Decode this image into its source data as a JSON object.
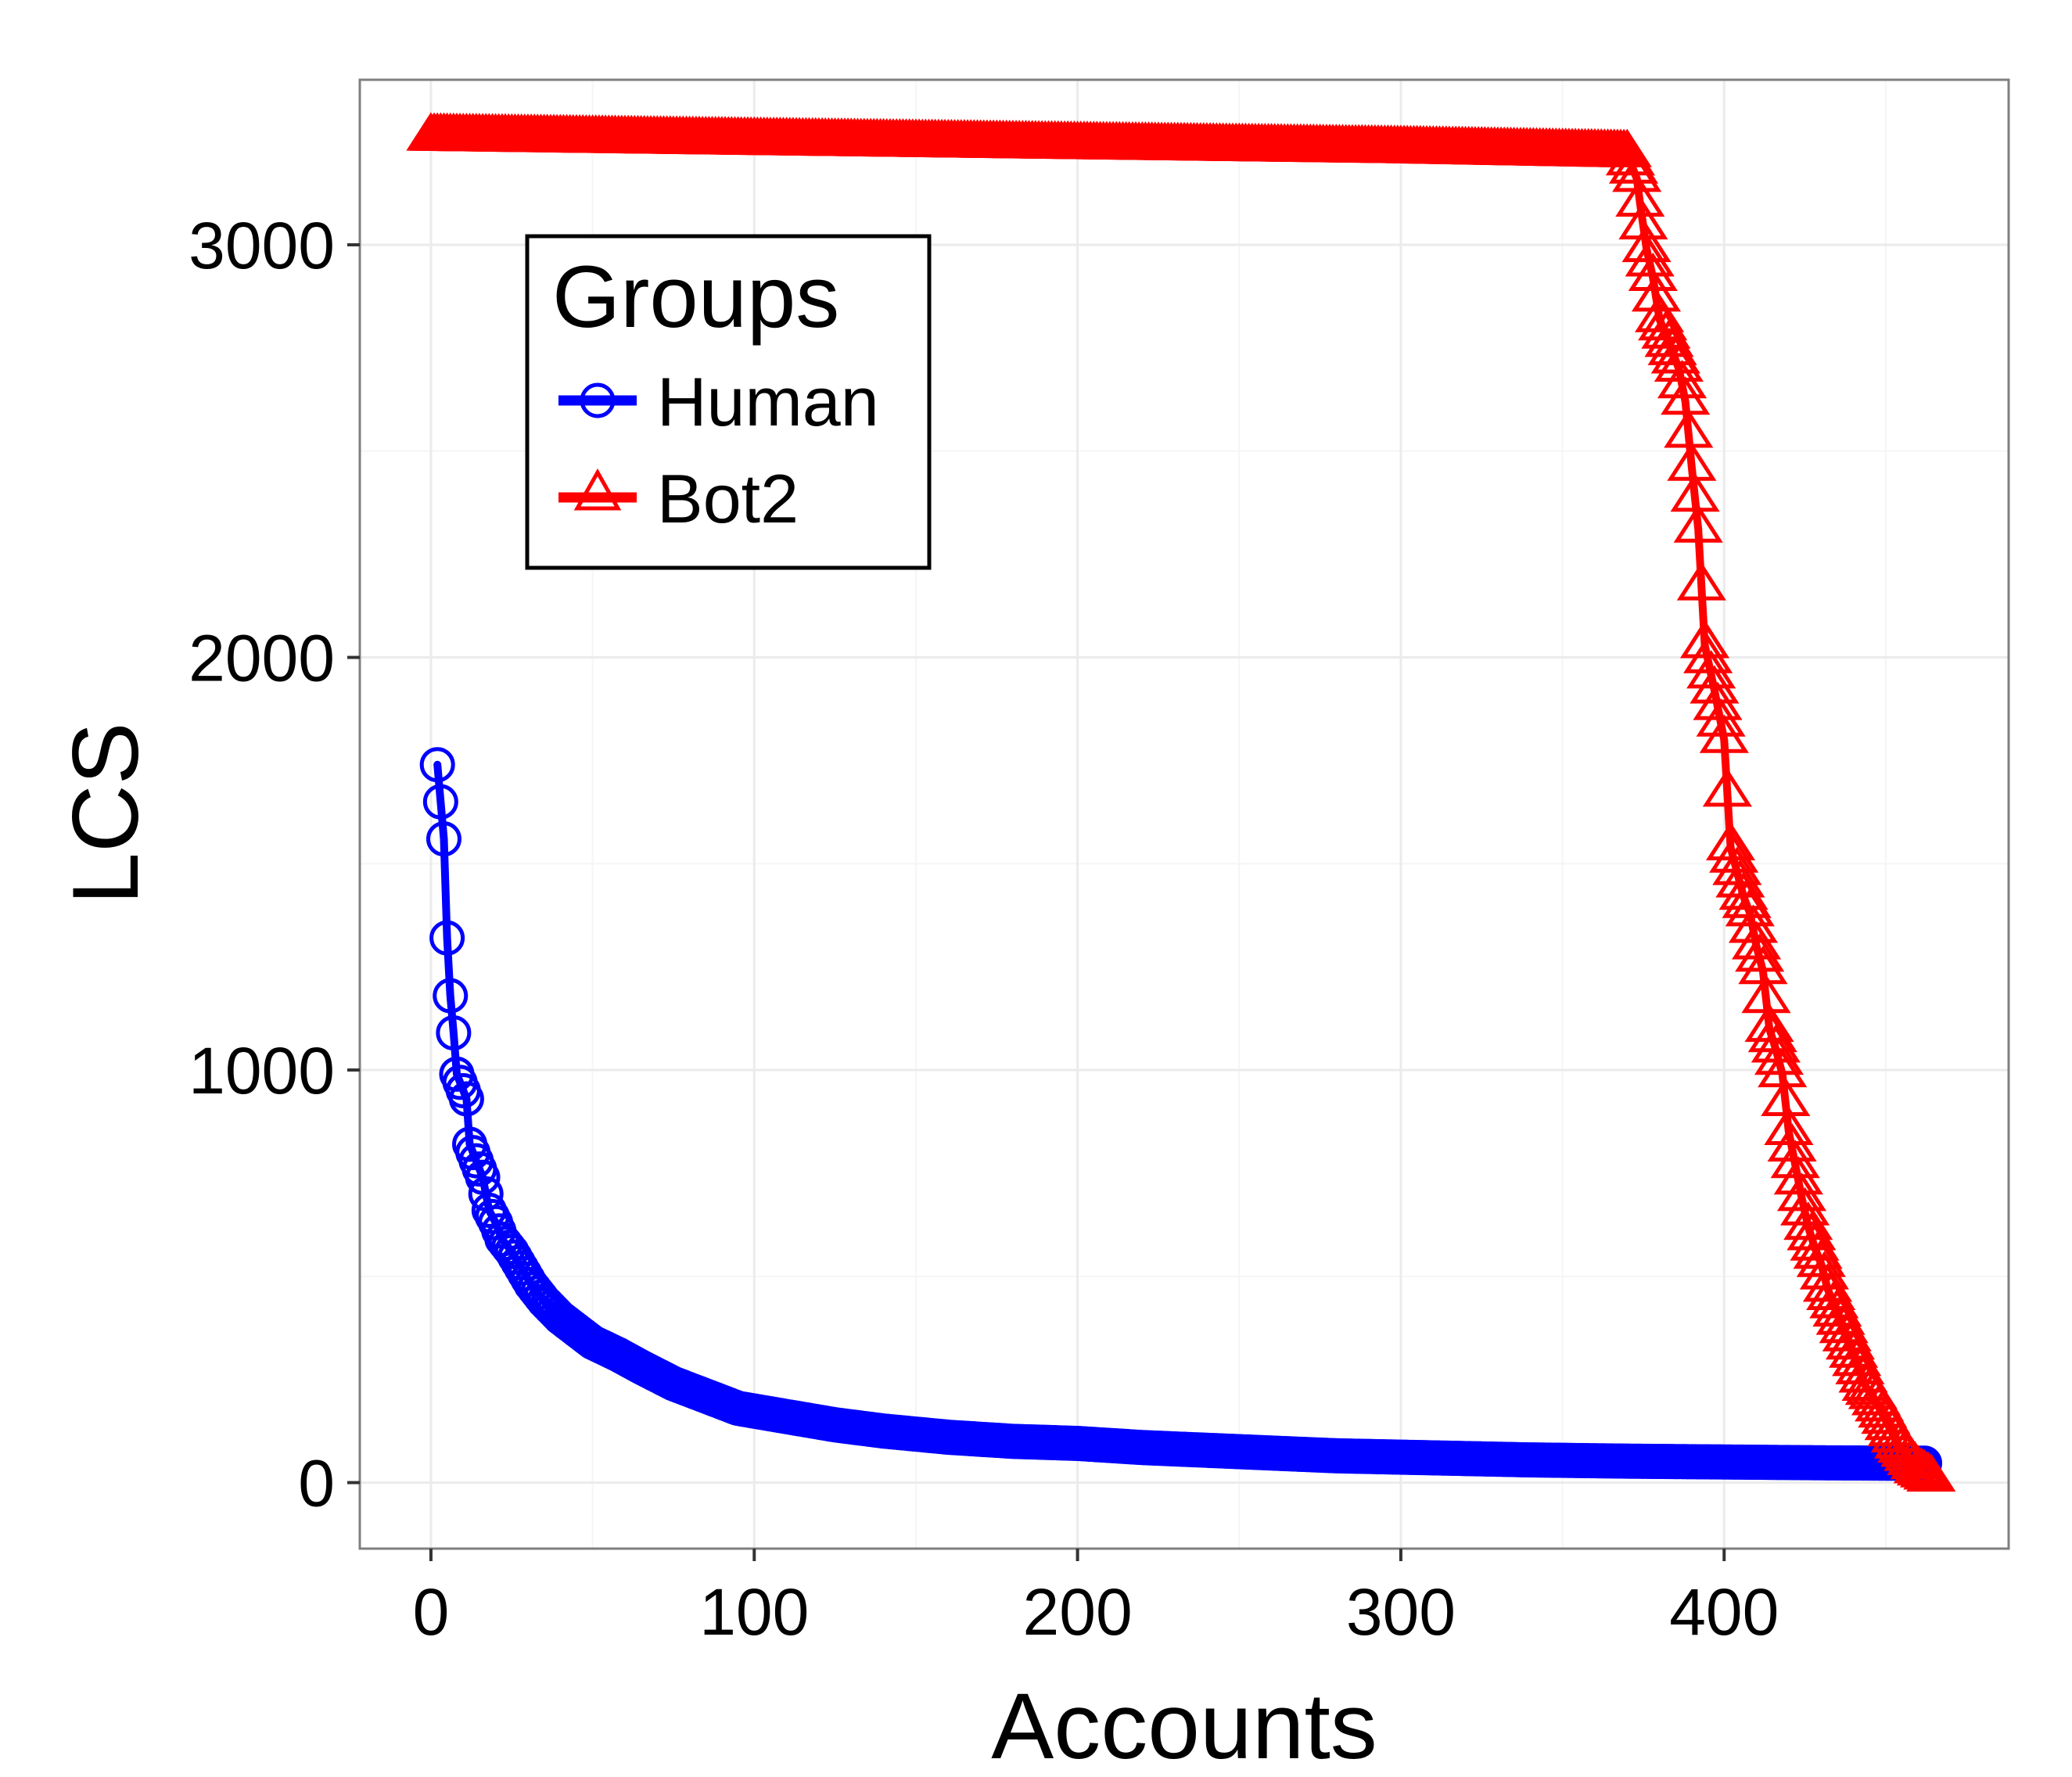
{
  "chart_data": {
    "type": "line",
    "title": "",
    "xlabel": "Accounts",
    "ylabel": "LCS",
    "xlim": [
      -22,
      488
    ],
    "ylim": [
      -160,
      3400
    ],
    "x_ticks": [
      0,
      100,
      200,
      300,
      400
    ],
    "y_ticks": [
      0,
      1000,
      2000,
      3000
    ],
    "grid": true,
    "legend": {
      "title": "Groups",
      "placement": "top-left inside plot",
      "entries": [
        "Human",
        "Bot2"
      ]
    },
    "colors": {
      "Human": "#0000ff",
      "Bot2": "#ff0000"
    },
    "series": [
      {
        "name": "Human",
        "marker": "circle",
        "color": "#0000ff",
        "x": [
          2,
          4,
          5,
          6,
          7,
          8,
          10,
          11,
          12,
          13,
          15,
          16,
          18,
          20,
          22,
          25,
          28,
          31,
          35,
          40,
          45,
          50,
          58,
          65,
          75,
          85,
          95,
          110,
          125,
          140,
          160,
          180,
          200,
          220,
          250,
          280,
          310,
          340,
          370,
          400,
          430,
          452,
          462
        ],
        "y": [
          1740,
          1560,
          1320,
          1180,
          1090,
          990,
          950,
          930,
          820,
          800,
          760,
          740,
          660,
          630,
          590,
          560,
          520,
          480,
          440,
          400,
          370,
          340,
          310,
          280,
          240,
          210,
          180,
          160,
          140,
          125,
          110,
          100,
          95,
          85,
          75,
          65,
          60,
          55,
          52,
          50,
          48,
          47,
          47
        ]
      },
      {
        "name": "Bot2",
        "marker": "triangle",
        "color": "#ff0000",
        "x": [
          0,
          100,
          200,
          300,
          370,
          373,
          374,
          376,
          378,
          380,
          383,
          386,
          388,
          390,
          392,
          394,
          397,
          400,
          402,
          404,
          406,
          408,
          410,
          412,
          414,
          416,
          418,
          420,
          422,
          424,
          426,
          428,
          430,
          432,
          434,
          436,
          438,
          440,
          442,
          444,
          446,
          448,
          450,
          452,
          454,
          456,
          458,
          460,
          462,
          464
        ],
        "y": [
          3260,
          3250,
          3240,
          3230,
          3220,
          3160,
          3100,
          2990,
          2920,
          2820,
          2760,
          2700,
          2620,
          2460,
          2310,
          2030,
          1920,
          1800,
          1540,
          1480,
          1420,
          1380,
          1300,
          1240,
          1100,
          1050,
          990,
          850,
          770,
          690,
          620,
          570,
          530,
          470,
          430,
          390,
          350,
          310,
          270,
          230,
          210,
          180,
          150,
          120,
          90,
          70,
          50,
          30,
          20,
          10
        ]
      }
    ]
  }
}
